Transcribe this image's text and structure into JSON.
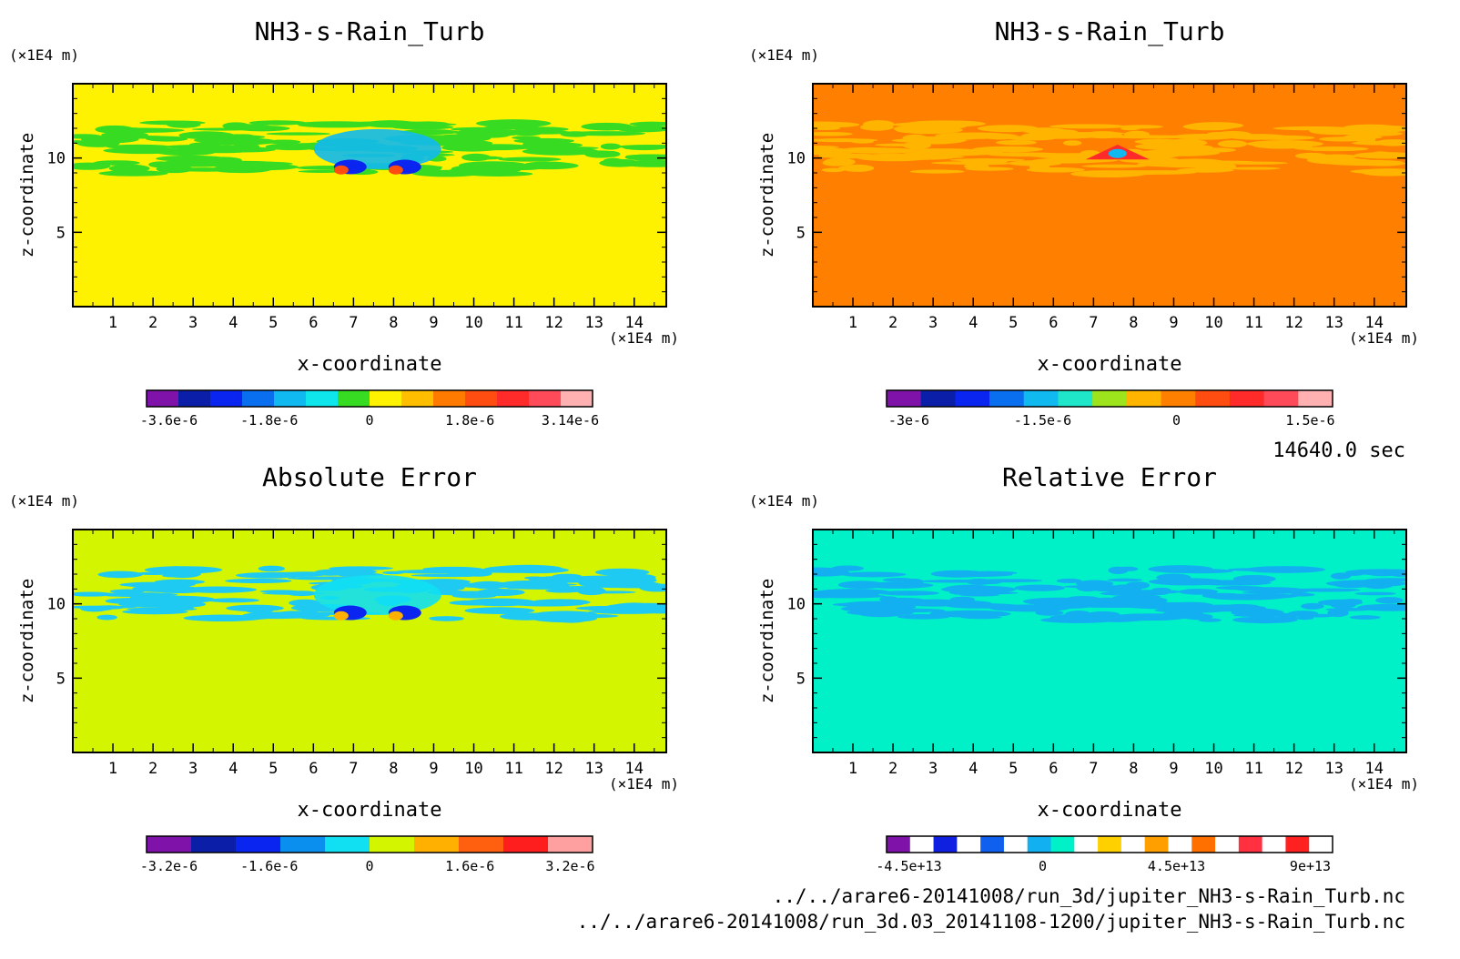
{
  "time_label": "14640.0 sec",
  "files": [
    "../../arare6-20141008/run_3d/jupiter_NH3-s-Rain_Turb.nc",
    "../../arare6-20141008/run_3d.03_20141108-1200/jupiter_NH3-s-Rain_Turb.nc"
  ],
  "chart_data": [
    {
      "type": "heatmap",
      "title": "NH3-s-Rain_Turb",
      "xlabel": "x-coordinate",
      "ylabel": "z-coordinate",
      "x_unit": "(×1E4 m)",
      "y_unit": "(×1E4 m)",
      "xlim": [
        0,
        14.8
      ],
      "ylim": [
        0,
        15
      ],
      "x_ticks": [
        1,
        2,
        3,
        4,
        5,
        6,
        7,
        8,
        9,
        10,
        11,
        12,
        13,
        14
      ],
      "y_ticks": [
        5,
        10
      ],
      "background_color": "#fff200",
      "band_color": "#37dc22",
      "colorbar": {
        "colors": [
          "#7f12a8",
          "#0b1ea8",
          "#0b25f0",
          "#0a6fee",
          "#10b9f0",
          "#0fe6ec",
          "#37dc22",
          "#fff200",
          "#ffbe00",
          "#ff7b00",
          "#ff4c10",
          "#ff2b2b",
          "#ff4a5a",
          "#ffb0b0"
        ],
        "tick_labels": [
          "-3.6e-6",
          "-1.8e-6",
          "0",
          "1.8e-6",
          "3.14e-6"
        ]
      }
    },
    {
      "type": "heatmap",
      "title": "NH3-s-Rain_Turb",
      "xlabel": "x-coordinate",
      "ylabel": "z-coordinate",
      "x_unit": "(×1E4 m)",
      "y_unit": "(×1E4 m)",
      "xlim": [
        0,
        14.8
      ],
      "ylim": [
        0,
        15
      ],
      "x_ticks": [
        1,
        2,
        3,
        4,
        5,
        6,
        7,
        8,
        9,
        10,
        11,
        12,
        13,
        14
      ],
      "y_ticks": [
        5,
        10
      ],
      "background_color": "#ff7f00",
      "band_color": "#ffb400",
      "colorbar": {
        "colors": [
          "#7f12a8",
          "#0b1ea8",
          "#0b25f0",
          "#0a6fee",
          "#10b9f0",
          "#1fe6c8",
          "#9ee41c",
          "#ffb400",
          "#ff7f00",
          "#ff4c10",
          "#ff2b2b",
          "#ff4a5a",
          "#ffb0b0"
        ],
        "tick_labels": [
          "-3e-6",
          "-1.5e-6",
          "0",
          "1.5e-6"
        ]
      }
    },
    {
      "type": "heatmap",
      "title": "Absolute Error",
      "xlabel": "x-coordinate",
      "ylabel": "z-coordinate",
      "x_unit": "(×1E4 m)",
      "y_unit": "(×1E4 m)",
      "xlim": [
        0,
        14.8
      ],
      "ylim": [
        0,
        15
      ],
      "x_ticks": [
        1,
        2,
        3,
        4,
        5,
        6,
        7,
        8,
        9,
        10,
        11,
        12,
        13,
        14
      ],
      "y_ticks": [
        5,
        10
      ],
      "background_color": "#d4f500",
      "band_color": "#1ecaf2",
      "colorbar": {
        "colors": [
          "#7f12a8",
          "#0b1ea8",
          "#0b25f0",
          "#0a8fef",
          "#10e0f2",
          "#d4f500",
          "#ffb000",
          "#ff6010",
          "#ff1e1e",
          "#ffa0a0"
        ],
        "tick_labels": [
          "-3.2e-6",
          "-1.6e-6",
          "0",
          "1.6e-6",
          "3.2e-6"
        ]
      }
    },
    {
      "type": "heatmap",
      "title": "Relative Error",
      "xlabel": "x-coordinate",
      "ylabel": "z-coordinate",
      "x_unit": "(×1E4 m)",
      "y_unit": "(×1E4 m)",
      "xlim": [
        0,
        14.8
      ],
      "ylim": [
        0,
        15
      ],
      "x_ticks": [
        1,
        2,
        3,
        4,
        5,
        6,
        7,
        8,
        9,
        10,
        11,
        12,
        13,
        14
      ],
      "y_ticks": [
        5,
        10
      ],
      "background_color": "#00f0c8",
      "band_color": "#12b0f0",
      "colorbar": {
        "colors": [
          "#7f12a8",
          "#ffffff",
          "#1020e0",
          "#ffffff",
          "#1060f0",
          "#ffffff",
          "#12b0f0",
          "#00f0c8",
          "#ffffff",
          "#ffd000",
          "#ffffff",
          "#ffa000",
          "#ffffff",
          "#ff7000",
          "#ffffff",
          "#ff3040",
          "#ffffff",
          "#ff2020",
          "#ffffff"
        ],
        "tick_labels": [
          "-4.5e+13",
          "0",
          "4.5e+13",
          "9e+13"
        ]
      }
    }
  ]
}
